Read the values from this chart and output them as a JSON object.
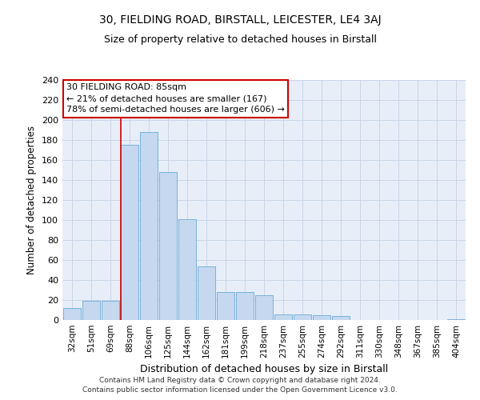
{
  "title1": "30, FIELDING ROAD, BIRSTALL, LEICESTER, LE4 3AJ",
  "title2": "Size of property relative to detached houses in Birstall",
  "xlabel": "Distribution of detached houses by size in Birstall",
  "ylabel": "Number of detached properties",
  "categories": [
    "32sqm",
    "51sqm",
    "69sqm",
    "88sqm",
    "106sqm",
    "125sqm",
    "144sqm",
    "162sqm",
    "181sqm",
    "199sqm",
    "218sqm",
    "237sqm",
    "255sqm",
    "274sqm",
    "292sqm",
    "311sqm",
    "330sqm",
    "348sqm",
    "367sqm",
    "385sqm",
    "404sqm"
  ],
  "values": [
    12,
    19,
    19,
    175,
    188,
    148,
    101,
    54,
    28,
    28,
    25,
    6,
    6,
    5,
    4,
    0,
    0,
    0,
    0,
    0,
    1
  ],
  "bar_color": "#c5d8ef",
  "bar_edge_color": "#6aaad4",
  "grid_color": "#c8d4e8",
  "background_color": "#e8eef8",
  "vline_x_index": 3,
  "vline_color": "#cc0000",
  "annotation_text": "30 FIELDING ROAD: 85sqm\n← 21% of detached houses are smaller (167)\n78% of semi-detached houses are larger (606) →",
  "annotation_box_color": "#ffffff",
  "annotation_box_edge_color": "#cc0000",
  "footer": "Contains HM Land Registry data © Crown copyright and database right 2024.\nContains public sector information licensed under the Open Government Licence v3.0.",
  "ylim": [
    0,
    240
  ],
  "yticks": [
    0,
    20,
    40,
    60,
    80,
    100,
    120,
    140,
    160,
    180,
    200,
    220,
    240
  ]
}
